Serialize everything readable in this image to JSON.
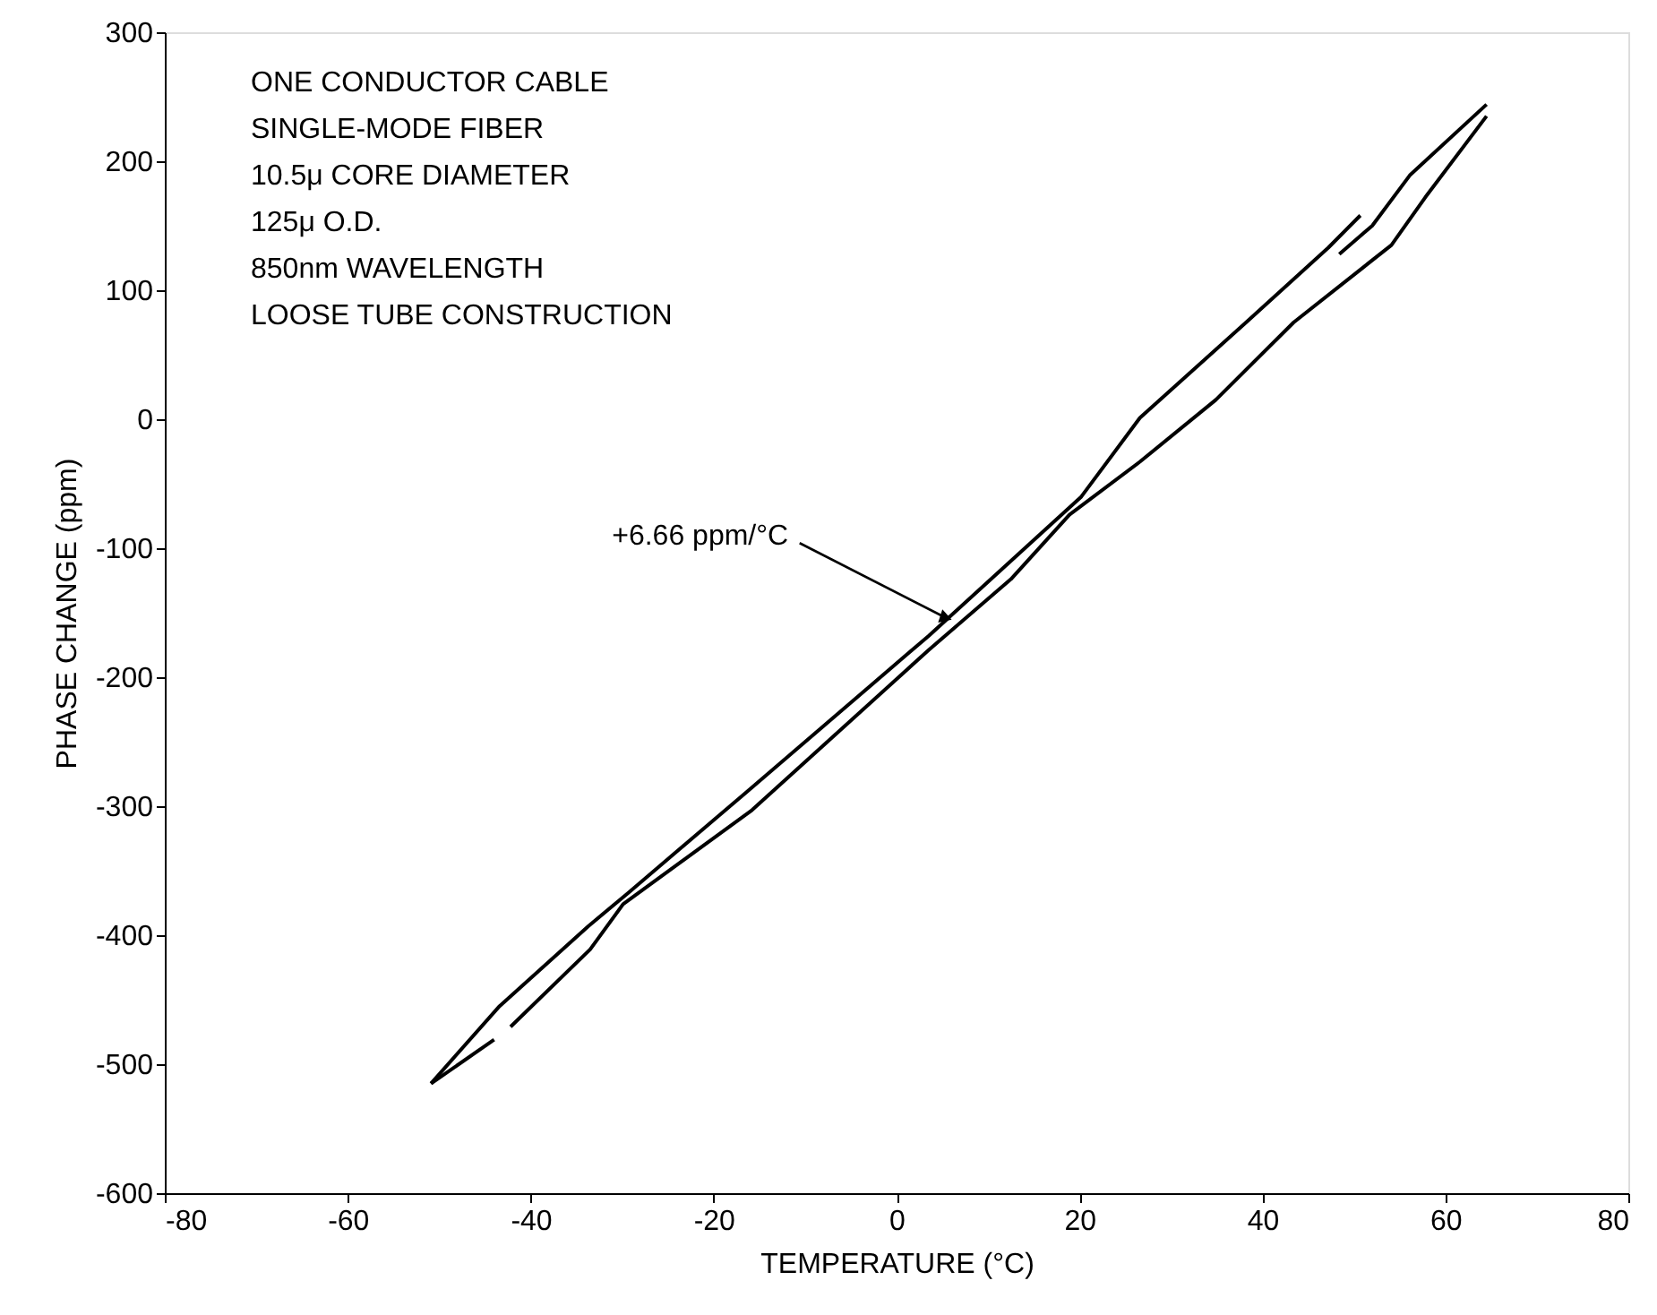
{
  "chart_data": {
    "type": "line",
    "xlabel": "TEMPERATURE (°C)",
    "ylabel": "PHASE CHANGE (ppm)",
    "series": [
      {
        "color": "#000000",
        "x": [
          -50.9,
          -43.4,
          -33.7,
          -29.3,
          -16.4,
          3.5,
          20.2,
          26.6,
          38.2,
          47.2,
          50.7,
          null,
          48.4,
          52,
          56.1,
          64.5
        ],
        "values": [
          -515,
          -455,
          -393,
          -367,
          -289,
          -168,
          -60,
          1,
          75,
          133,
          158,
          null,
          128,
          150,
          189,
          244
        ]
      },
      {
        "color": "#000000",
        "x": [
          64.5,
          57.8,
          54.1,
          43.4,
          34.9,
          26.6,
          18.9,
          12.5,
          3.5,
          -15.8,
          -29.9,
          -33.5,
          -42.2,
          null,
          -44,
          -50.9
        ],
        "values": [
          235,
          172,
          135,
          75,
          15,
          -33,
          -74,
          -124,
          -179,
          -303,
          -376,
          -411,
          -471,
          null,
          -481,
          -515
        ]
      }
    ],
    "xlim": [
      -80,
      80
    ],
    "xticks": [
      -80,
      -60,
      -40,
      -20,
      0,
      20,
      40,
      60,
      80
    ],
    "ylim": [
      -600,
      300
    ],
    "yticks": [
      -600,
      -500,
      -400,
      -300,
      -200,
      -100,
      0,
      100,
      200,
      300
    ],
    "grid": false,
    "marker": "none",
    "line_style": "solid",
    "annotations": [
      "ONE CONDUCTOR CABLE",
      "SINGLE-MODE FIBER",
      "10.5μ CORE DIAMETER",
      "125μ O.D.",
      "850nm WAVELENGTH",
      "LOOSE TUBE CONSTRUCTION",
      {
        "text": "+6.66 ppm/°C",
        "x": 5.4,
        "y": -154
      }
    ]
  }
}
